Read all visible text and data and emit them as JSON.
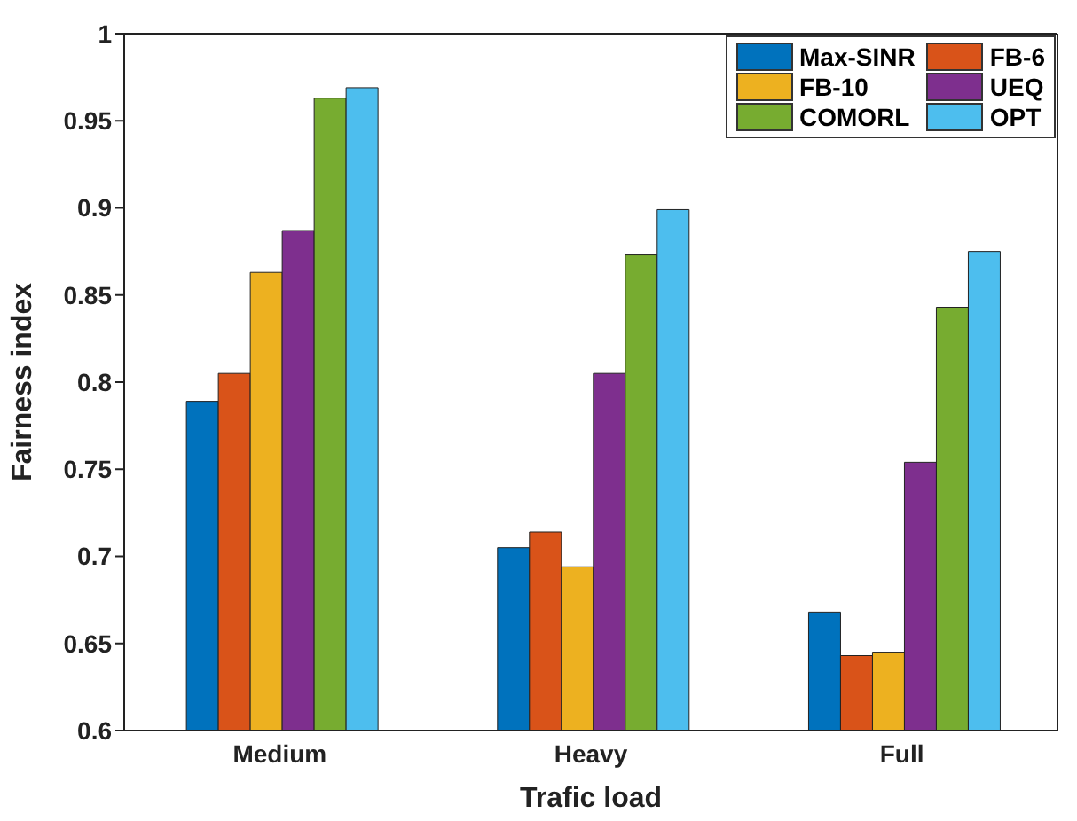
{
  "chart_data": {
    "type": "bar",
    "xlabel": "Trafic load",
    "ylabel": "Fairness index",
    "categories": [
      "Medium",
      "Heavy",
      "Full"
    ],
    "series": [
      {
        "name": "Max-SINR",
        "color": "#0072bd",
        "values": [
          0.789,
          0.705,
          0.668
        ]
      },
      {
        "name": "FB-6",
        "color": "#d95319",
        "values": [
          0.805,
          0.714,
          0.643
        ]
      },
      {
        "name": "FB-10",
        "color": "#edb120",
        "values": [
          0.863,
          0.694,
          0.645
        ]
      },
      {
        "name": "UEQ",
        "color": "#7e2f8e",
        "values": [
          0.887,
          0.805,
          0.754
        ]
      },
      {
        "name": "COMORL",
        "color": "#77ac30",
        "values": [
          0.963,
          0.873,
          0.843
        ]
      },
      {
        "name": "OPT",
        "color": "#4dbeee",
        "values": [
          0.969,
          0.899,
          0.875
        ]
      }
    ],
    "ylim": [
      0.6,
      1
    ],
    "yticks": [
      0.6,
      0.65,
      0.7,
      0.75,
      0.8,
      0.85,
      0.9,
      0.95,
      1
    ],
    "legend": "top right"
  }
}
